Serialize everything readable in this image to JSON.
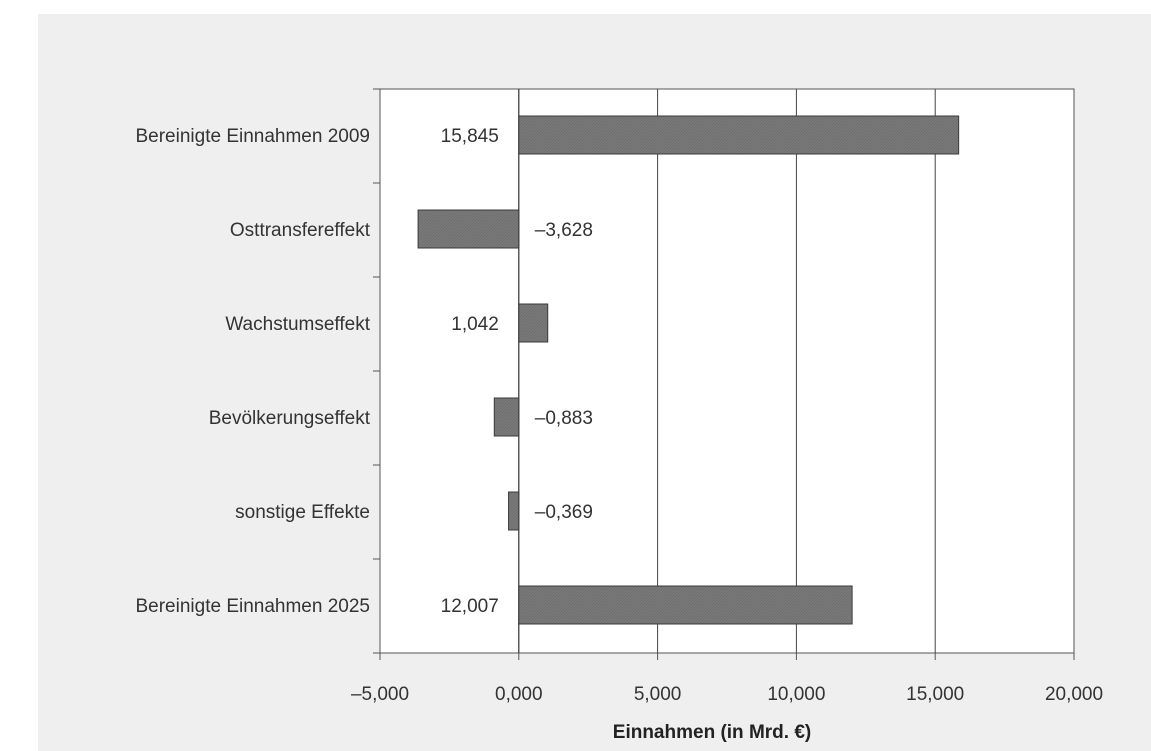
{
  "chart_data": {
    "type": "bar",
    "orientation": "horizontal",
    "title": "",
    "xlabel": "Einnahmen (in Mrd. €)",
    "ylabel": "",
    "xlim": [
      -5,
      20
    ],
    "xticks": [
      -5,
      0,
      5,
      10,
      15,
      20
    ],
    "xtick_labels": [
      "–5,000",
      "0,000",
      "5,000",
      "10,000",
      "15,000",
      "20,000"
    ],
    "grid": "vertical",
    "categories": [
      "Bereinigte Einnahmen 2009",
      "Osttransfereffekt",
      "Wachstumseffekt",
      "Bevölkerungseffekt",
      "sonstige Effekte",
      "Bereinigte Einnahmen 2025"
    ],
    "values": [
      15.845,
      -3.628,
      1.042,
      -0.883,
      -0.369,
      12.007
    ],
    "value_labels": [
      "15,845",
      "–3,628",
      "1,042",
      "–0,883",
      "–0,369",
      "12,007"
    ],
    "bar_color": "#7a7a7a",
    "bar_edge_color": "#3a3a3a"
  }
}
